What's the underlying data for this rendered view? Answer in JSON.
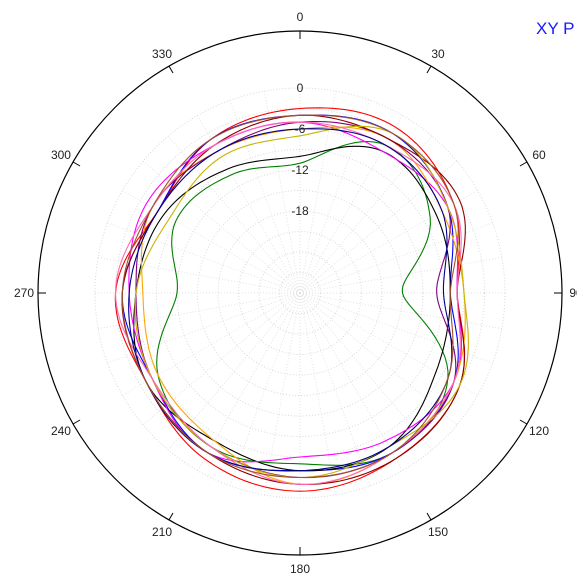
{
  "chart_data": {
    "type": "polar-line",
    "title": "XY P",
    "title_color": "#1a1aff",
    "angle_labels": [
      "0",
      "30",
      "60",
      "90",
      "120",
      "150",
      "180",
      "210",
      "240",
      "270",
      "300",
      "330"
    ],
    "radial_labels": [
      "0",
      "-6",
      "-12",
      "-18"
    ],
    "r_range": [
      -30,
      0
    ],
    "grid": true,
    "series": [
      {
        "color": "#ff0000",
        "values": [
          -3,
          -2,
          -4,
          -7,
          -3,
          -2,
          -1,
          -2,
          -4,
          -3,
          -6,
          -4
        ]
      },
      {
        "color": "#008000",
        "values": [
          -11,
          -5,
          -8,
          -15,
          -5,
          -3,
          -5,
          -4,
          -6,
          -12,
          -9,
          -10
        ]
      },
      {
        "color": "#0000ff",
        "values": [
          -4,
          -3,
          -5,
          -8,
          -4,
          -3,
          -4,
          -3,
          -5,
          -4,
          -6,
          -4
        ]
      },
      {
        "color": "#000000",
        "values": [
          -10,
          -6,
          -7,
          -8,
          -7,
          -4,
          -4,
          -5,
          -4,
          -6,
          -7,
          -9
        ]
      },
      {
        "color": "#ff00ff",
        "values": [
          -5,
          -6,
          -5,
          -7,
          -4,
          -5,
          -6,
          -3,
          -5,
          -5,
          -4,
          -5
        ]
      },
      {
        "color": "#ffa500",
        "values": [
          -6,
          -4,
          -6,
          -6,
          -4,
          -3,
          -2,
          -5,
          -6,
          -7,
          -5,
          -6
        ]
      },
      {
        "color": "#800080",
        "values": [
          -5,
          -4,
          -5,
          -10,
          -4,
          -3,
          -3,
          -4,
          -5,
          -6,
          -5,
          -6
        ]
      },
      {
        "color": "#8b0000",
        "values": [
          -4,
          -4,
          -3,
          -7,
          -3,
          -2,
          -2,
          -3,
          -4,
          -4,
          -6,
          -5
        ]
      },
      {
        "color": "#c8b400",
        "values": [
          -7,
          -3,
          -5,
          -6,
          -3,
          -4,
          -3,
          -4,
          -5,
          -6,
          -8,
          -7
        ]
      },
      {
        "color": "#ff69b4",
        "values": [
          -5,
          -5,
          -4,
          -7,
          -4,
          -3,
          -2,
          -4,
          -5,
          -3,
          -5,
          -5
        ]
      },
      {
        "color": "#00008b",
        "values": [
          -6,
          -5,
          -6,
          -9,
          -5,
          -4,
          -4,
          -3,
          -4,
          -5,
          -6,
          -6
        ]
      },
      {
        "color": "#a0522d",
        "values": [
          -4,
          -3,
          -4,
          -8,
          -5,
          -3,
          -3,
          -3,
          -4,
          -4,
          -5,
          -4
        ]
      }
    ]
  }
}
